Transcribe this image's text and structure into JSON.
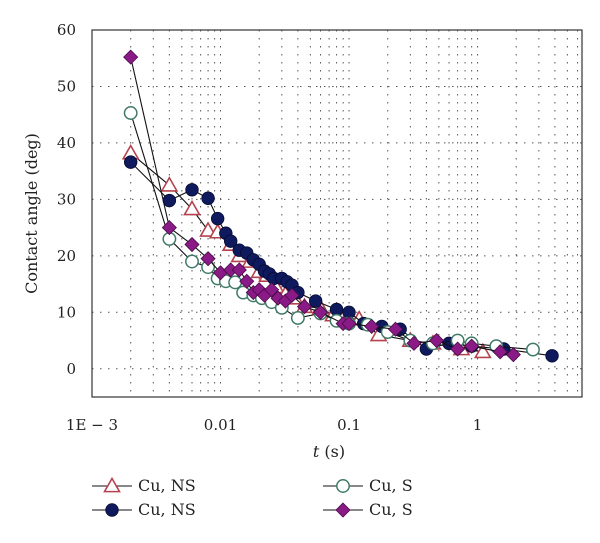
{
  "chart_data": {
    "type": "scatter",
    "title": "",
    "xlabel_var": "t",
    "xlabel_unit": " (s)",
    "ylabel": "Contact angle (deg)",
    "xscale": "log",
    "xlim": [
      0.001,
      6.5
    ],
    "ylim": [
      -5,
      60
    ],
    "grid": true,
    "xticks": [
      {
        "value": 0.001,
        "label": "1E − 3"
      },
      {
        "value": 0.01,
        "label": "0.01"
      },
      {
        "value": 0.1,
        "label": "0.1"
      },
      {
        "value": 1,
        "label": "1"
      }
    ],
    "yticks": [
      {
        "value": 0,
        "label": "0"
      },
      {
        "value": 10,
        "label": "10"
      },
      {
        "value": 20,
        "label": "20"
      },
      {
        "value": 30,
        "label": "30"
      },
      {
        "value": 40,
        "label": "40"
      },
      {
        "value": 50,
        "label": "50"
      },
      {
        "value": 60,
        "label": "60"
      }
    ],
    "legend_position": "bottom",
    "series": [
      {
        "name": "Cu, NS",
        "marker": "triangle-open",
        "color": "#b5434f",
        "line": true,
        "x": [
          0.002,
          0.004,
          0.006,
          0.008,
          0.0095,
          0.012,
          0.014,
          0.017,
          0.02,
          0.023,
          0.027,
          0.032,
          0.038,
          0.045,
          0.06,
          0.075,
          0.09,
          0.12,
          0.17,
          0.3,
          0.45,
          0.75,
          1.1
        ],
        "y": [
          38.2,
          32.5,
          28.3,
          24.5,
          24.2,
          22.0,
          20.0,
          19.0,
          17.2,
          16.5,
          14.5,
          13.2,
          12.5,
          11.0,
          10.8,
          9.5,
          9.0,
          8.8,
          6.0,
          5.0,
          4.5,
          3.5,
          3.0
        ]
      },
      {
        "name": "Cu, NS",
        "marker": "circle-filled",
        "color": "#0f1a5e",
        "line": true,
        "x": [
          0.002,
          0.004,
          0.006,
          0.008,
          0.0095,
          0.011,
          0.012,
          0.014,
          0.016,
          0.018,
          0.02,
          0.022,
          0.024,
          0.026,
          0.03,
          0.033,
          0.036,
          0.04,
          0.055,
          0.08,
          0.1,
          0.13,
          0.18,
          0.25,
          0.4,
          0.6,
          0.9,
          1.6,
          3.8
        ],
        "y": [
          36.6,
          29.8,
          31.7,
          30.2,
          26.6,
          24.0,
          22.6,
          21.0,
          20.5,
          19.3,
          18.5,
          17.3,
          16.8,
          16.0,
          16.0,
          15.4,
          14.8,
          13.5,
          12.0,
          10.5,
          10.0,
          8.0,
          7.5,
          7.0,
          3.5,
          4.5,
          4.0,
          3.5,
          2.3
        ]
      },
      {
        "name": "Cu, S",
        "marker": "circle-open",
        "color": "#3f7a68",
        "line": true,
        "x": [
          0.002,
          0.004,
          0.006,
          0.008,
          0.0095,
          0.011,
          0.013,
          0.015,
          0.018,
          0.021,
          0.025,
          0.03,
          0.04,
          0.06,
          0.08,
          0.1,
          0.14,
          0.2,
          0.3,
          0.45,
          0.7,
          0.9,
          1.4,
          2.7
        ],
        "y": [
          45.3,
          23.0,
          19.0,
          18.0,
          16.0,
          15.5,
          15.3,
          13.5,
          13.0,
          12.5,
          11.8,
          10.8,
          9.0,
          9.8,
          8.5,
          8.0,
          7.8,
          6.5,
          5.0,
          4.5,
          5.0,
          4.5,
          4.0,
          3.4
        ]
      },
      {
        "name": "Cu, S",
        "marker": "diamond-filled",
        "color": "#8a1a86",
        "line": true,
        "x": [
          0.002,
          0.004,
          0.006,
          0.008,
          0.01,
          0.012,
          0.014,
          0.016,
          0.018,
          0.02,
          0.022,
          0.025,
          0.028,
          0.032,
          0.036,
          0.045,
          0.06,
          0.09,
          0.1,
          0.15,
          0.23,
          0.32,
          0.48,
          0.7,
          0.9,
          1.5,
          1.9
        ],
        "y": [
          55.2,
          25.0,
          22.0,
          19.5,
          17.0,
          17.5,
          17.5,
          15.5,
          13.5,
          14.0,
          13.0,
          14.0,
          12.5,
          12.0,
          13.0,
          11.0,
          10.0,
          8.0,
          8.0,
          7.5,
          7.0,
          4.5,
          5.0,
          3.5,
          4.0,
          3.0,
          2.5
        ]
      }
    ]
  }
}
